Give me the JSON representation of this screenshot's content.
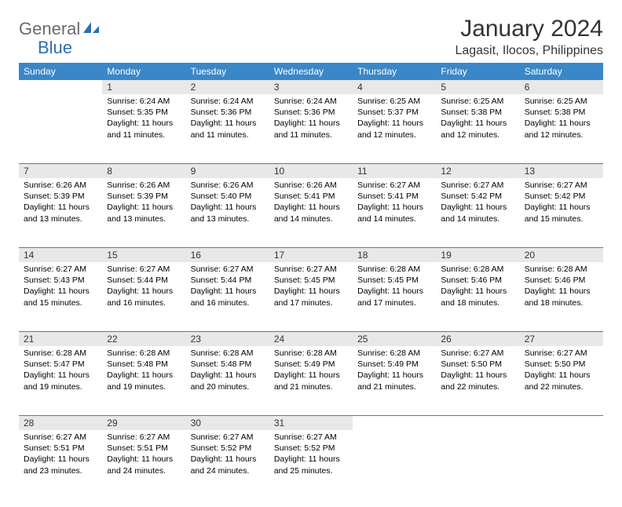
{
  "logo": {
    "word1": "General",
    "word2": "Blue",
    "icon_color": "#2b6fb3",
    "text_color_1": "#6b6b6b",
    "text_color_2": "#2b6fb3"
  },
  "title": "January 2024",
  "location": "Lagasit, Ilocos, Philippines",
  "colors": {
    "header_bg": "#3a87c8",
    "header_text": "#ffffff",
    "daynum_bg": "#e8e8e8",
    "rule": "#5a7a9a",
    "body_text": "#000000"
  },
  "weekdays": [
    "Sunday",
    "Monday",
    "Tuesday",
    "Wednesday",
    "Thursday",
    "Friday",
    "Saturday"
  ],
  "weeks": [
    [
      null,
      {
        "n": "1",
        "sunrise": "Sunrise: 6:24 AM",
        "sunset": "Sunset: 5:35 PM",
        "d1": "Daylight: 11 hours",
        "d2": "and 11 minutes."
      },
      {
        "n": "2",
        "sunrise": "Sunrise: 6:24 AM",
        "sunset": "Sunset: 5:36 PM",
        "d1": "Daylight: 11 hours",
        "d2": "and 11 minutes."
      },
      {
        "n": "3",
        "sunrise": "Sunrise: 6:24 AM",
        "sunset": "Sunset: 5:36 PM",
        "d1": "Daylight: 11 hours",
        "d2": "and 11 minutes."
      },
      {
        "n": "4",
        "sunrise": "Sunrise: 6:25 AM",
        "sunset": "Sunset: 5:37 PM",
        "d1": "Daylight: 11 hours",
        "d2": "and 12 minutes."
      },
      {
        "n": "5",
        "sunrise": "Sunrise: 6:25 AM",
        "sunset": "Sunset: 5:38 PM",
        "d1": "Daylight: 11 hours",
        "d2": "and 12 minutes."
      },
      {
        "n": "6",
        "sunrise": "Sunrise: 6:25 AM",
        "sunset": "Sunset: 5:38 PM",
        "d1": "Daylight: 11 hours",
        "d2": "and 12 minutes."
      }
    ],
    [
      {
        "n": "7",
        "sunrise": "Sunrise: 6:26 AM",
        "sunset": "Sunset: 5:39 PM",
        "d1": "Daylight: 11 hours",
        "d2": "and 13 minutes."
      },
      {
        "n": "8",
        "sunrise": "Sunrise: 6:26 AM",
        "sunset": "Sunset: 5:39 PM",
        "d1": "Daylight: 11 hours",
        "d2": "and 13 minutes."
      },
      {
        "n": "9",
        "sunrise": "Sunrise: 6:26 AM",
        "sunset": "Sunset: 5:40 PM",
        "d1": "Daylight: 11 hours",
        "d2": "and 13 minutes."
      },
      {
        "n": "10",
        "sunrise": "Sunrise: 6:26 AM",
        "sunset": "Sunset: 5:41 PM",
        "d1": "Daylight: 11 hours",
        "d2": "and 14 minutes."
      },
      {
        "n": "11",
        "sunrise": "Sunrise: 6:27 AM",
        "sunset": "Sunset: 5:41 PM",
        "d1": "Daylight: 11 hours",
        "d2": "and 14 minutes."
      },
      {
        "n": "12",
        "sunrise": "Sunrise: 6:27 AM",
        "sunset": "Sunset: 5:42 PM",
        "d1": "Daylight: 11 hours",
        "d2": "and 14 minutes."
      },
      {
        "n": "13",
        "sunrise": "Sunrise: 6:27 AM",
        "sunset": "Sunset: 5:42 PM",
        "d1": "Daylight: 11 hours",
        "d2": "and 15 minutes."
      }
    ],
    [
      {
        "n": "14",
        "sunrise": "Sunrise: 6:27 AM",
        "sunset": "Sunset: 5:43 PM",
        "d1": "Daylight: 11 hours",
        "d2": "and 15 minutes."
      },
      {
        "n": "15",
        "sunrise": "Sunrise: 6:27 AM",
        "sunset": "Sunset: 5:44 PM",
        "d1": "Daylight: 11 hours",
        "d2": "and 16 minutes."
      },
      {
        "n": "16",
        "sunrise": "Sunrise: 6:27 AM",
        "sunset": "Sunset: 5:44 PM",
        "d1": "Daylight: 11 hours",
        "d2": "and 16 minutes."
      },
      {
        "n": "17",
        "sunrise": "Sunrise: 6:27 AM",
        "sunset": "Sunset: 5:45 PM",
        "d1": "Daylight: 11 hours",
        "d2": "and 17 minutes."
      },
      {
        "n": "18",
        "sunrise": "Sunrise: 6:28 AM",
        "sunset": "Sunset: 5:45 PM",
        "d1": "Daylight: 11 hours",
        "d2": "and 17 minutes."
      },
      {
        "n": "19",
        "sunrise": "Sunrise: 6:28 AM",
        "sunset": "Sunset: 5:46 PM",
        "d1": "Daylight: 11 hours",
        "d2": "and 18 minutes."
      },
      {
        "n": "20",
        "sunrise": "Sunrise: 6:28 AM",
        "sunset": "Sunset: 5:46 PM",
        "d1": "Daylight: 11 hours",
        "d2": "and 18 minutes."
      }
    ],
    [
      {
        "n": "21",
        "sunrise": "Sunrise: 6:28 AM",
        "sunset": "Sunset: 5:47 PM",
        "d1": "Daylight: 11 hours",
        "d2": "and 19 minutes."
      },
      {
        "n": "22",
        "sunrise": "Sunrise: 6:28 AM",
        "sunset": "Sunset: 5:48 PM",
        "d1": "Daylight: 11 hours",
        "d2": "and 19 minutes."
      },
      {
        "n": "23",
        "sunrise": "Sunrise: 6:28 AM",
        "sunset": "Sunset: 5:48 PM",
        "d1": "Daylight: 11 hours",
        "d2": "and 20 minutes."
      },
      {
        "n": "24",
        "sunrise": "Sunrise: 6:28 AM",
        "sunset": "Sunset: 5:49 PM",
        "d1": "Daylight: 11 hours",
        "d2": "and 21 minutes."
      },
      {
        "n": "25",
        "sunrise": "Sunrise: 6:28 AM",
        "sunset": "Sunset: 5:49 PM",
        "d1": "Daylight: 11 hours",
        "d2": "and 21 minutes."
      },
      {
        "n": "26",
        "sunrise": "Sunrise: 6:27 AM",
        "sunset": "Sunset: 5:50 PM",
        "d1": "Daylight: 11 hours",
        "d2": "and 22 minutes."
      },
      {
        "n": "27",
        "sunrise": "Sunrise: 6:27 AM",
        "sunset": "Sunset: 5:50 PM",
        "d1": "Daylight: 11 hours",
        "d2": "and 22 minutes."
      }
    ],
    [
      {
        "n": "28",
        "sunrise": "Sunrise: 6:27 AM",
        "sunset": "Sunset: 5:51 PM",
        "d1": "Daylight: 11 hours",
        "d2": "and 23 minutes."
      },
      {
        "n": "29",
        "sunrise": "Sunrise: 6:27 AM",
        "sunset": "Sunset: 5:51 PM",
        "d1": "Daylight: 11 hours",
        "d2": "and 24 minutes."
      },
      {
        "n": "30",
        "sunrise": "Sunrise: 6:27 AM",
        "sunset": "Sunset: 5:52 PM",
        "d1": "Daylight: 11 hours",
        "d2": "and 24 minutes."
      },
      {
        "n": "31",
        "sunrise": "Sunrise: 6:27 AM",
        "sunset": "Sunset: 5:52 PM",
        "d1": "Daylight: 11 hours",
        "d2": "and 25 minutes."
      },
      null,
      null,
      null
    ]
  ]
}
